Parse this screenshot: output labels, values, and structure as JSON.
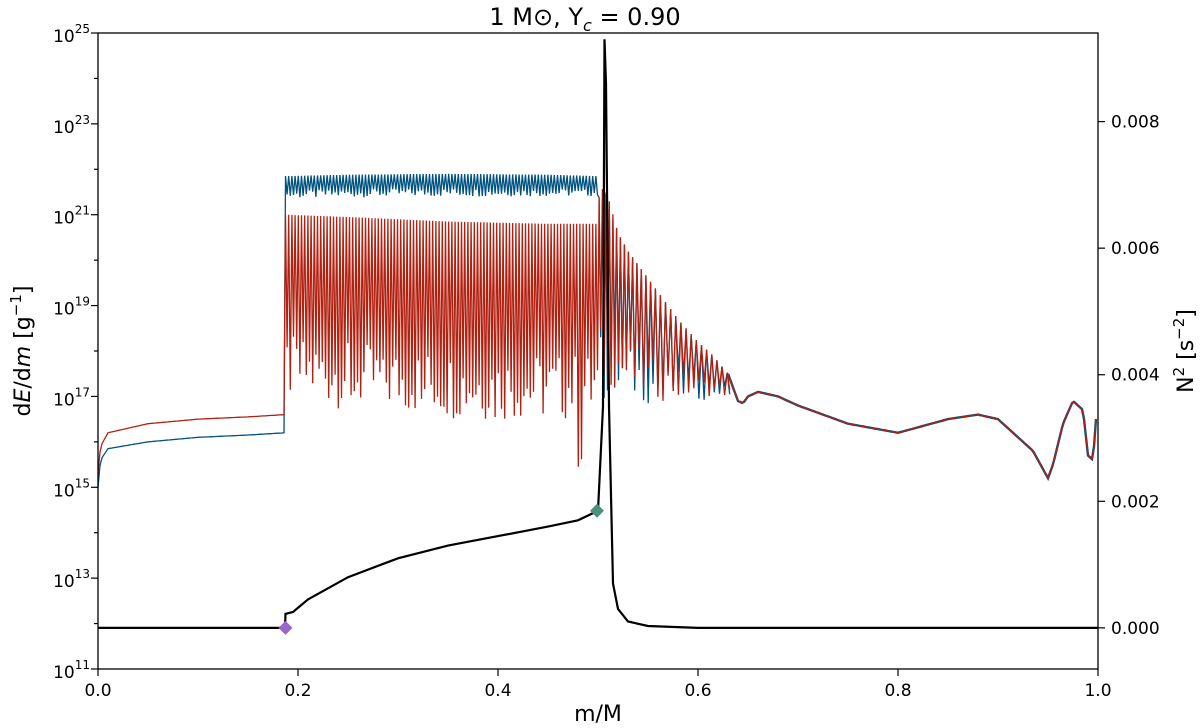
{
  "chart_data": {
    "type": "line",
    "title": "1 M⊙, Y",
    "title_sub": "c",
    "title_value": " = 0.90",
    "xlabel": "m/M",
    "ylabel_left": {
      "part1": "d",
      "part2": "E",
      "part3": "/d",
      "part4": "m",
      "part5": " [g",
      "exp": "−1",
      "part6": "]"
    },
    "ylabel_right": {
      "base": "N",
      "exp": "2",
      "unit_open": " [s",
      "unit_exp": "−2",
      "unit_close": "]"
    },
    "xlim": [
      0.0,
      1.0
    ],
    "ylim_left_log10": [
      11,
      25
    ],
    "ylim_right": [
      -0.00065,
      0.0094
    ],
    "left_scale": "log",
    "grid": false,
    "x_ticks": [
      {
        "value": 0.0,
        "label": "0.0"
      },
      {
        "value": 0.2,
        "label": "0.2"
      },
      {
        "value": 0.4,
        "label": "0.4"
      },
      {
        "value": 0.6,
        "label": "0.6"
      },
      {
        "value": 0.8,
        "label": "0.8"
      },
      {
        "value": 1.0,
        "label": "1.0"
      }
    ],
    "left_ticks": [
      {
        "exp": 11,
        "base": "10",
        "sup": "11"
      },
      {
        "exp": 13,
        "base": "10",
        "sup": "13"
      },
      {
        "exp": 15,
        "base": "10",
        "sup": "15"
      },
      {
        "exp": 17,
        "base": "10",
        "sup": "17"
      },
      {
        "exp": 19,
        "base": "10",
        "sup": "19"
      },
      {
        "exp": 21,
        "base": "10",
        "sup": "21"
      },
      {
        "exp": 23,
        "base": "10",
        "sup": "23"
      },
      {
        "exp": 25,
        "base": "10",
        "sup": "25"
      }
    ],
    "right_ticks": [
      {
        "value": 0.0,
        "label": "0.000"
      },
      {
        "value": 0.002,
        "label": "0.002"
      },
      {
        "value": 0.004,
        "label": "0.004"
      },
      {
        "value": 0.006,
        "label": "0.006"
      },
      {
        "value": 0.008,
        "label": "0.008"
      }
    ],
    "series": [
      {
        "axis": "left",
        "color": "#00527f",
        "envelope_log10": {
          "x": [
            0.0,
            0.0025,
            0.01,
            0.05,
            0.1,
            0.15,
            0.187,
            0.1875,
            0.25,
            0.35,
            0.45,
            0.499,
            0.5,
            0.51,
            0.52,
            0.53,
            0.54,
            0.55,
            0.56,
            0.57,
            0.58,
            0.6,
            0.615,
            0.63
          ],
          "upper": [
            15.0,
            15.6,
            15.85,
            16.0,
            16.1,
            16.15,
            16.2,
            21.85,
            21.88,
            21.9,
            21.88,
            21.85,
            21.4,
            21.2,
            20.6,
            20.2,
            19.9,
            19.6,
            19.3,
            19.0,
            18.7,
            18.2,
            17.9,
            17.5
          ],
          "floor": [
            15.0,
            15.6,
            15.85,
            16.0,
            16.1,
            16.15,
            16.2,
            21.35,
            21.38,
            21.4,
            21.4,
            21.4,
            16.8,
            16.9,
            16.9,
            16.9,
            16.9,
            16.8,
            16.8,
            16.8,
            16.9,
            16.9,
            17.0,
            17.0
          ]
        }
      },
      {
        "axis": "left",
        "color": "#b22010",
        "envelope_log10": {
          "x": [
            0.0,
            0.0025,
            0.01,
            0.05,
            0.1,
            0.15,
            0.187,
            0.1875,
            0.25,
            0.35,
            0.45,
            0.499,
            0.5,
            0.505,
            0.51,
            0.52,
            0.53,
            0.54,
            0.55,
            0.56,
            0.57,
            0.58,
            0.6,
            0.615,
            0.63
          ],
          "upper": [
            15.3,
            15.9,
            16.2,
            16.4,
            16.5,
            16.55,
            16.6,
            21.0,
            20.95,
            20.85,
            20.8,
            20.8,
            21.3,
            21.6,
            21.4,
            20.6,
            20.2,
            19.9,
            19.6,
            19.3,
            19.0,
            18.7,
            18.2,
            17.9,
            17.5
          ],
          "floor": [
            15.3,
            15.9,
            16.2,
            16.4,
            16.5,
            16.55,
            16.6,
            16.9,
            16.7,
            16.5,
            16.4,
            16.5,
            17.0,
            17.2,
            17.2,
            17.1,
            17.0,
            17.0,
            16.9,
            16.9,
            16.9,
            16.9,
            17.0,
            17.0,
            17.0
          ],
          "dips": [
            {
              "x": 0.252,
              "y": 15.7
            },
            {
              "x": 0.283,
              "y": 16.3
            },
            {
              "x": 0.322,
              "y": 16.0
            },
            {
              "x": 0.36,
              "y": 16.6
            },
            {
              "x": 0.395,
              "y": 16.3
            },
            {
              "x": 0.44,
              "y": 16.5
            },
            {
              "x": 0.48,
              "y": 15.3
            },
            {
              "x": 0.492,
              "y": 16.4
            }
          ]
        }
      },
      {
        "axis": "left",
        "color_a": "#00527f",
        "color_b": "#b22010",
        "tail_log10": {
          "x": [
            0.63,
            0.635,
            0.64,
            0.645,
            0.65,
            0.66,
            0.68,
            0.7,
            0.75,
            0.8,
            0.85,
            0.88,
            0.9,
            0.92,
            0.935,
            0.945,
            0.95,
            0.955,
            0.965,
            0.975,
            0.985,
            0.99,
            0.995,
            1.0
          ],
          "y": [
            17.5,
            17.2,
            16.9,
            16.85,
            17.0,
            17.1,
            17.0,
            16.8,
            16.4,
            16.2,
            16.5,
            16.6,
            16.5,
            16.1,
            15.8,
            15.4,
            15.2,
            15.5,
            16.4,
            16.9,
            16.7,
            15.7,
            15.6,
            17.1
          ]
        }
      },
      {
        "axis": "right",
        "color": "#000000",
        "x": [
          0.0,
          0.05,
          0.1,
          0.15,
          0.187,
          0.1875,
          0.195,
          0.21,
          0.25,
          0.3,
          0.35,
          0.4,
          0.45,
          0.48,
          0.5,
          0.505,
          0.5065,
          0.508,
          0.511,
          0.515,
          0.52,
          0.53,
          0.55,
          0.6,
          0.7,
          0.8,
          0.9,
          1.0
        ],
        "y": [
          0.0,
          0.0,
          0.0,
          0.0,
          0.0,
          0.00022,
          0.00025,
          0.00045,
          0.0008,
          0.0011,
          0.0013,
          0.00145,
          0.0016,
          0.0017,
          0.00185,
          0.0035,
          0.0093,
          0.0086,
          0.0035,
          0.0007,
          0.0003,
          0.0001,
          3e-05,
          0.0,
          0.0,
          0.0,
          0.0,
          0.0
        ]
      }
    ],
    "markers": [
      {
        "x": 0.1875,
        "y": 0.0,
        "axis": "right",
        "color": "#9966cc",
        "shape": "diamond"
      },
      {
        "x": 0.499,
        "y": 0.00185,
        "axis": "right",
        "color": "#4c9080",
        "shape": "diamond"
      }
    ]
  }
}
